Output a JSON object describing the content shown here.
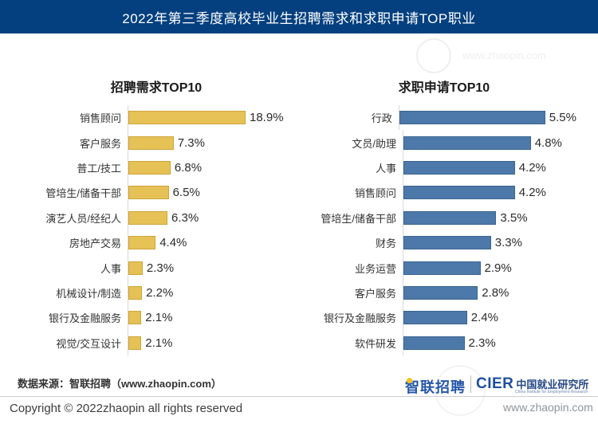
{
  "header": {
    "title": "2022年第三季度高校毕业生招聘需求和求职申请TOP职业"
  },
  "chart_data": [
    {
      "type": "bar",
      "orientation": "horizontal",
      "title": "招聘需求TOP10",
      "categories": [
        "销售顾问",
        "客户服务",
        "普工/技工",
        "管培生/储备干部",
        "演艺人员/经纪人",
        "房地产交易",
        "人事",
        "机械设计/制造",
        "银行及金融服务",
        "视觉/交互设计"
      ],
      "values": [
        18.9,
        7.3,
        6.8,
        6.5,
        6.3,
        4.4,
        2.3,
        2.2,
        2.1,
        2.1
      ],
      "unit": "%",
      "bar_color_hex": "#E5C156",
      "xlim": [
        0,
        20
      ],
      "grid": false,
      "value_labels": "outside-end"
    },
    {
      "type": "bar",
      "orientation": "horizontal",
      "title": "求职申请TOP10",
      "categories": [
        "行政",
        "文员/助理",
        "人事",
        "销售顾问",
        "管培生/储备干部",
        "财务",
        "业务运营",
        "客户服务",
        "银行及金融服务",
        "软件研发"
      ],
      "values": [
        5.5,
        4.8,
        4.2,
        4.2,
        3.5,
        3.3,
        2.9,
        2.8,
        2.4,
        2.3
      ],
      "unit": "%",
      "bar_color_hex": "#4C79AA",
      "xlim": [
        0,
        6
      ],
      "grid": false,
      "value_labels": "outside-end"
    }
  ],
  "footer": {
    "source": "数据来源：智联招聘（www.zhaopin.com）",
    "copyright": "Copyright © 2022zhaopin all rights reserved",
    "logo_zhaopin": "智联招聘",
    "logo_cier": "CIER",
    "logo_cier_cn": "中国就业研究所",
    "logo_cier_en": "China Institute for Employment Research",
    "website": "www.zhaopin.com"
  },
  "watermark": {
    "text": "www.zhaopin.com"
  },
  "colors": {
    "banner_bg": "#04407F",
    "bar_yellow": "#E5C156",
    "bar_blue": "#4C79AA",
    "axis_line": "#D8D8D8"
  }
}
